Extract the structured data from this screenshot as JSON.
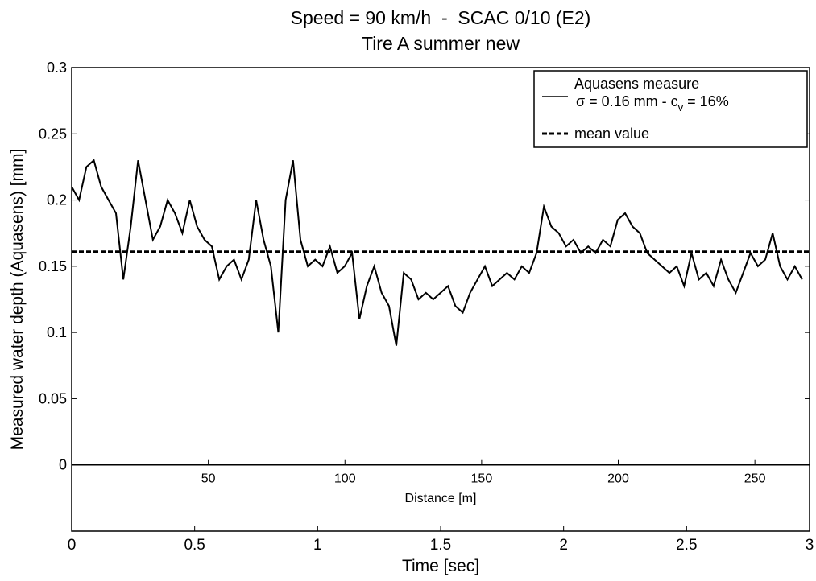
{
  "chart_data": {
    "type": "line",
    "title": "Speed = 90 km/h  -  SCAC 0/10 (E2)",
    "subtitle": "Tire A summer new",
    "ylabel": "Measured water depth (Aquasens) [mm]",
    "xlabel": "Time [sec]",
    "x2label": "Distance [m]",
    "xlim": [
      0,
      3
    ],
    "xticks": [
      0,
      0.5,
      1,
      1.5,
      2,
      2.5,
      3
    ],
    "x2lim": [
      0,
      270
    ],
    "x2ticks": [
      50,
      100,
      150,
      200,
      250
    ],
    "ylim": [
      -0.05,
      0.3
    ],
    "yticks": [
      0,
      0.05,
      0.1,
      0.15,
      0.2,
      0.25,
      0.3
    ],
    "x": [
      0,
      0.03,
      0.06,
      0.09,
      0.12,
      0.15,
      0.18,
      0.21,
      0.24,
      0.27,
      0.3,
      0.33,
      0.36,
      0.39,
      0.42,
      0.45,
      0.48,
      0.51,
      0.54,
      0.57,
      0.6,
      0.63,
      0.66,
      0.69,
      0.72,
      0.75,
      0.78,
      0.81,
      0.84,
      0.87,
      0.9,
      0.93,
      0.96,
      0.99,
      1.02,
      1.05,
      1.08,
      1.11,
      1.14,
      1.17,
      1.2,
      1.23,
      1.26,
      1.29,
      1.32,
      1.35,
      1.38,
      1.41,
      1.44,
      1.47,
      1.5,
      1.53,
      1.56,
      1.59,
      1.62,
      1.65,
      1.68,
      1.71,
      1.74,
      1.77,
      1.8,
      1.83,
      1.86,
      1.89,
      1.92,
      1.95,
      1.98,
      2.01,
      2.04,
      2.07,
      2.1,
      2.13,
      2.16,
      2.19,
      2.22,
      2.25,
      2.28,
      2.31,
      2.34,
      2.37,
      2.4,
      2.43,
      2.46,
      2.49,
      2.52,
      2.55,
      2.58,
      2.61,
      2.64,
      2.67,
      2.7,
      2.73,
      2.76,
      2.79,
      2.82,
      2.85,
      2.88,
      2.91,
      2.94,
      2.97
    ],
    "series": [
      {
        "name": "Aquasens measure",
        "color": "#000000",
        "values": [
          0.21,
          0.2,
          0.225,
          0.23,
          0.21,
          0.2,
          0.19,
          0.14,
          0.18,
          0.23,
          0.2,
          0.17,
          0.18,
          0.2,
          0.19,
          0.175,
          0.2,
          0.18,
          0.17,
          0.165,
          0.14,
          0.15,
          0.155,
          0.14,
          0.155,
          0.2,
          0.17,
          0.15,
          0.1,
          0.2,
          0.23,
          0.17,
          0.15,
          0.155,
          0.15,
          0.165,
          0.145,
          0.15,
          0.16,
          0.11,
          0.135,
          0.15,
          0.13,
          0.12,
          0.09,
          0.145,
          0.14,
          0.125,
          0.13,
          0.125,
          0.13,
          0.135,
          0.12,
          0.115,
          0.13,
          0.14,
          0.15,
          0.135,
          0.14,
          0.145,
          0.14,
          0.15,
          0.145,
          0.16,
          0.195,
          0.18,
          0.175,
          0.165,
          0.17,
          0.16,
          0.165,
          0.16,
          0.17,
          0.165,
          0.185,
          0.19,
          0.18,
          0.175,
          0.16,
          0.155,
          0.15,
          0.145,
          0.15,
          0.135,
          0.16,
          0.14,
          0.145,
          0.135,
          0.155,
          0.14,
          0.13,
          0.145,
          0.16,
          0.15,
          0.155,
          0.175,
          0.15,
          0.14,
          0.15,
          0.14
        ]
      }
    ],
    "legend_note": {
      "text": "σ = 0.16 mm - c",
      "subscript": "v",
      "tail": " = 16%"
    },
    "mean": {
      "name": "mean value",
      "value": 0.161,
      "color": "#000000"
    },
    "legend": "upper right"
  }
}
